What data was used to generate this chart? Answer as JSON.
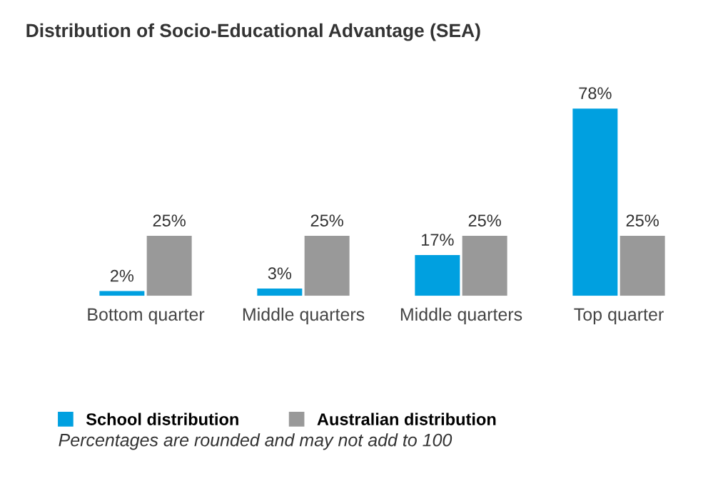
{
  "chart_data": {
    "type": "bar",
    "title": "Distribution of Socio-Educational Advantage (SEA)",
    "categories": [
      "Bottom quarter",
      "Middle quarters",
      "Middle quarters",
      "Top quarter"
    ],
    "series": [
      {
        "name": "School distribution",
        "color": "#00a0e0",
        "values": [
          2,
          3,
          17,
          78
        ],
        "value_labels": [
          "2%",
          "3%",
          "17%",
          "78%"
        ]
      },
      {
        "name": "Australian distribution",
        "color": "#999999",
        "values": [
          25,
          25,
          25,
          25
        ],
        "value_labels": [
          "25%",
          "25%",
          "25%",
          "25%"
        ]
      }
    ],
    "legend": "bottom left",
    "grid": false,
    "annotations": [
      "Percentages are rounded and may not add to 100"
    ]
  }
}
